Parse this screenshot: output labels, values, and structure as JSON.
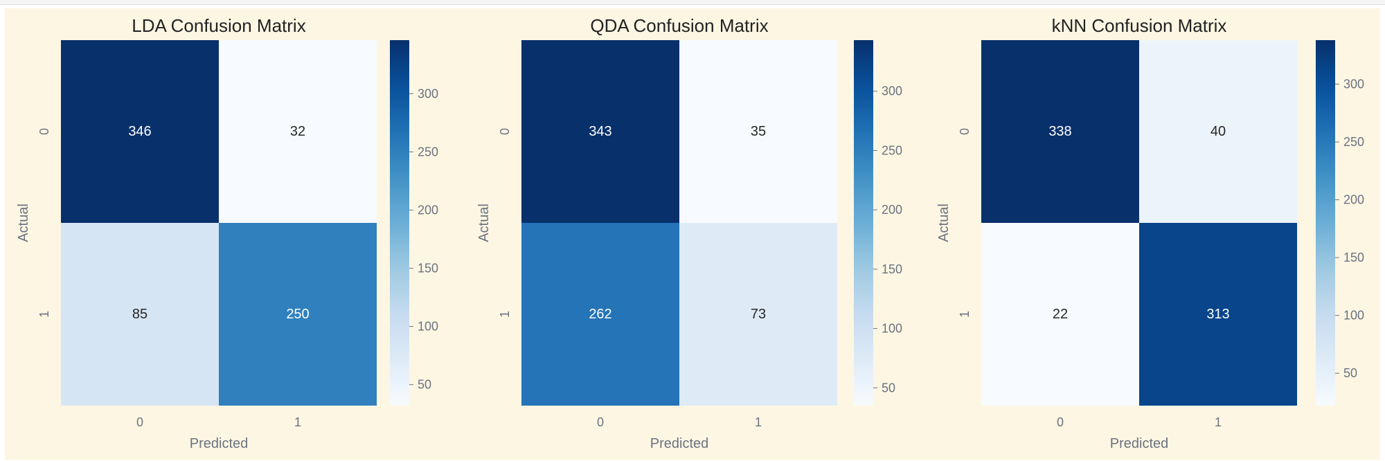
{
  "chart_data": [
    {
      "type": "heatmap",
      "title": "LDA Confusion Matrix",
      "xlabel": "Predicted",
      "ylabel": "Actual",
      "x_categories": [
        "0",
        "1"
      ],
      "y_categories": [
        "0",
        "1"
      ],
      "values": [
        [
          346,
          32
        ],
        [
          85,
          250
        ]
      ],
      "colorbar": {
        "range": [
          32,
          346
        ],
        "ticks": [
          50,
          100,
          150,
          200,
          250,
          300
        ]
      }
    },
    {
      "type": "heatmap",
      "title": "QDA Confusion Matrix",
      "xlabel": "Predicted",
      "ylabel": "Actual",
      "x_categories": [
        "0",
        "1"
      ],
      "y_categories": [
        "0",
        "1"
      ],
      "values": [
        [
          343,
          35
        ],
        [
          262,
          73
        ]
      ],
      "colorbar": {
        "range": [
          35,
          343
        ],
        "ticks": [
          50,
          100,
          150,
          200,
          250,
          300
        ]
      }
    },
    {
      "type": "heatmap",
      "title": "kNN Confusion Matrix",
      "xlabel": "Predicted",
      "ylabel": "Actual",
      "x_categories": [
        "0",
        "1"
      ],
      "y_categories": [
        "0",
        "1"
      ],
      "values": [
        [
          338,
          40
        ],
        [
          22,
          313
        ]
      ],
      "colorbar": {
        "range": [
          22,
          338
        ],
        "ticks": [
          50,
          100,
          150,
          200,
          250,
          300
        ]
      }
    }
  ],
  "colors": {
    "cell_background": "#fdf6e3",
    "colormap": "Blues",
    "axis_text": "#6b7280",
    "title_text": "#222222"
  }
}
